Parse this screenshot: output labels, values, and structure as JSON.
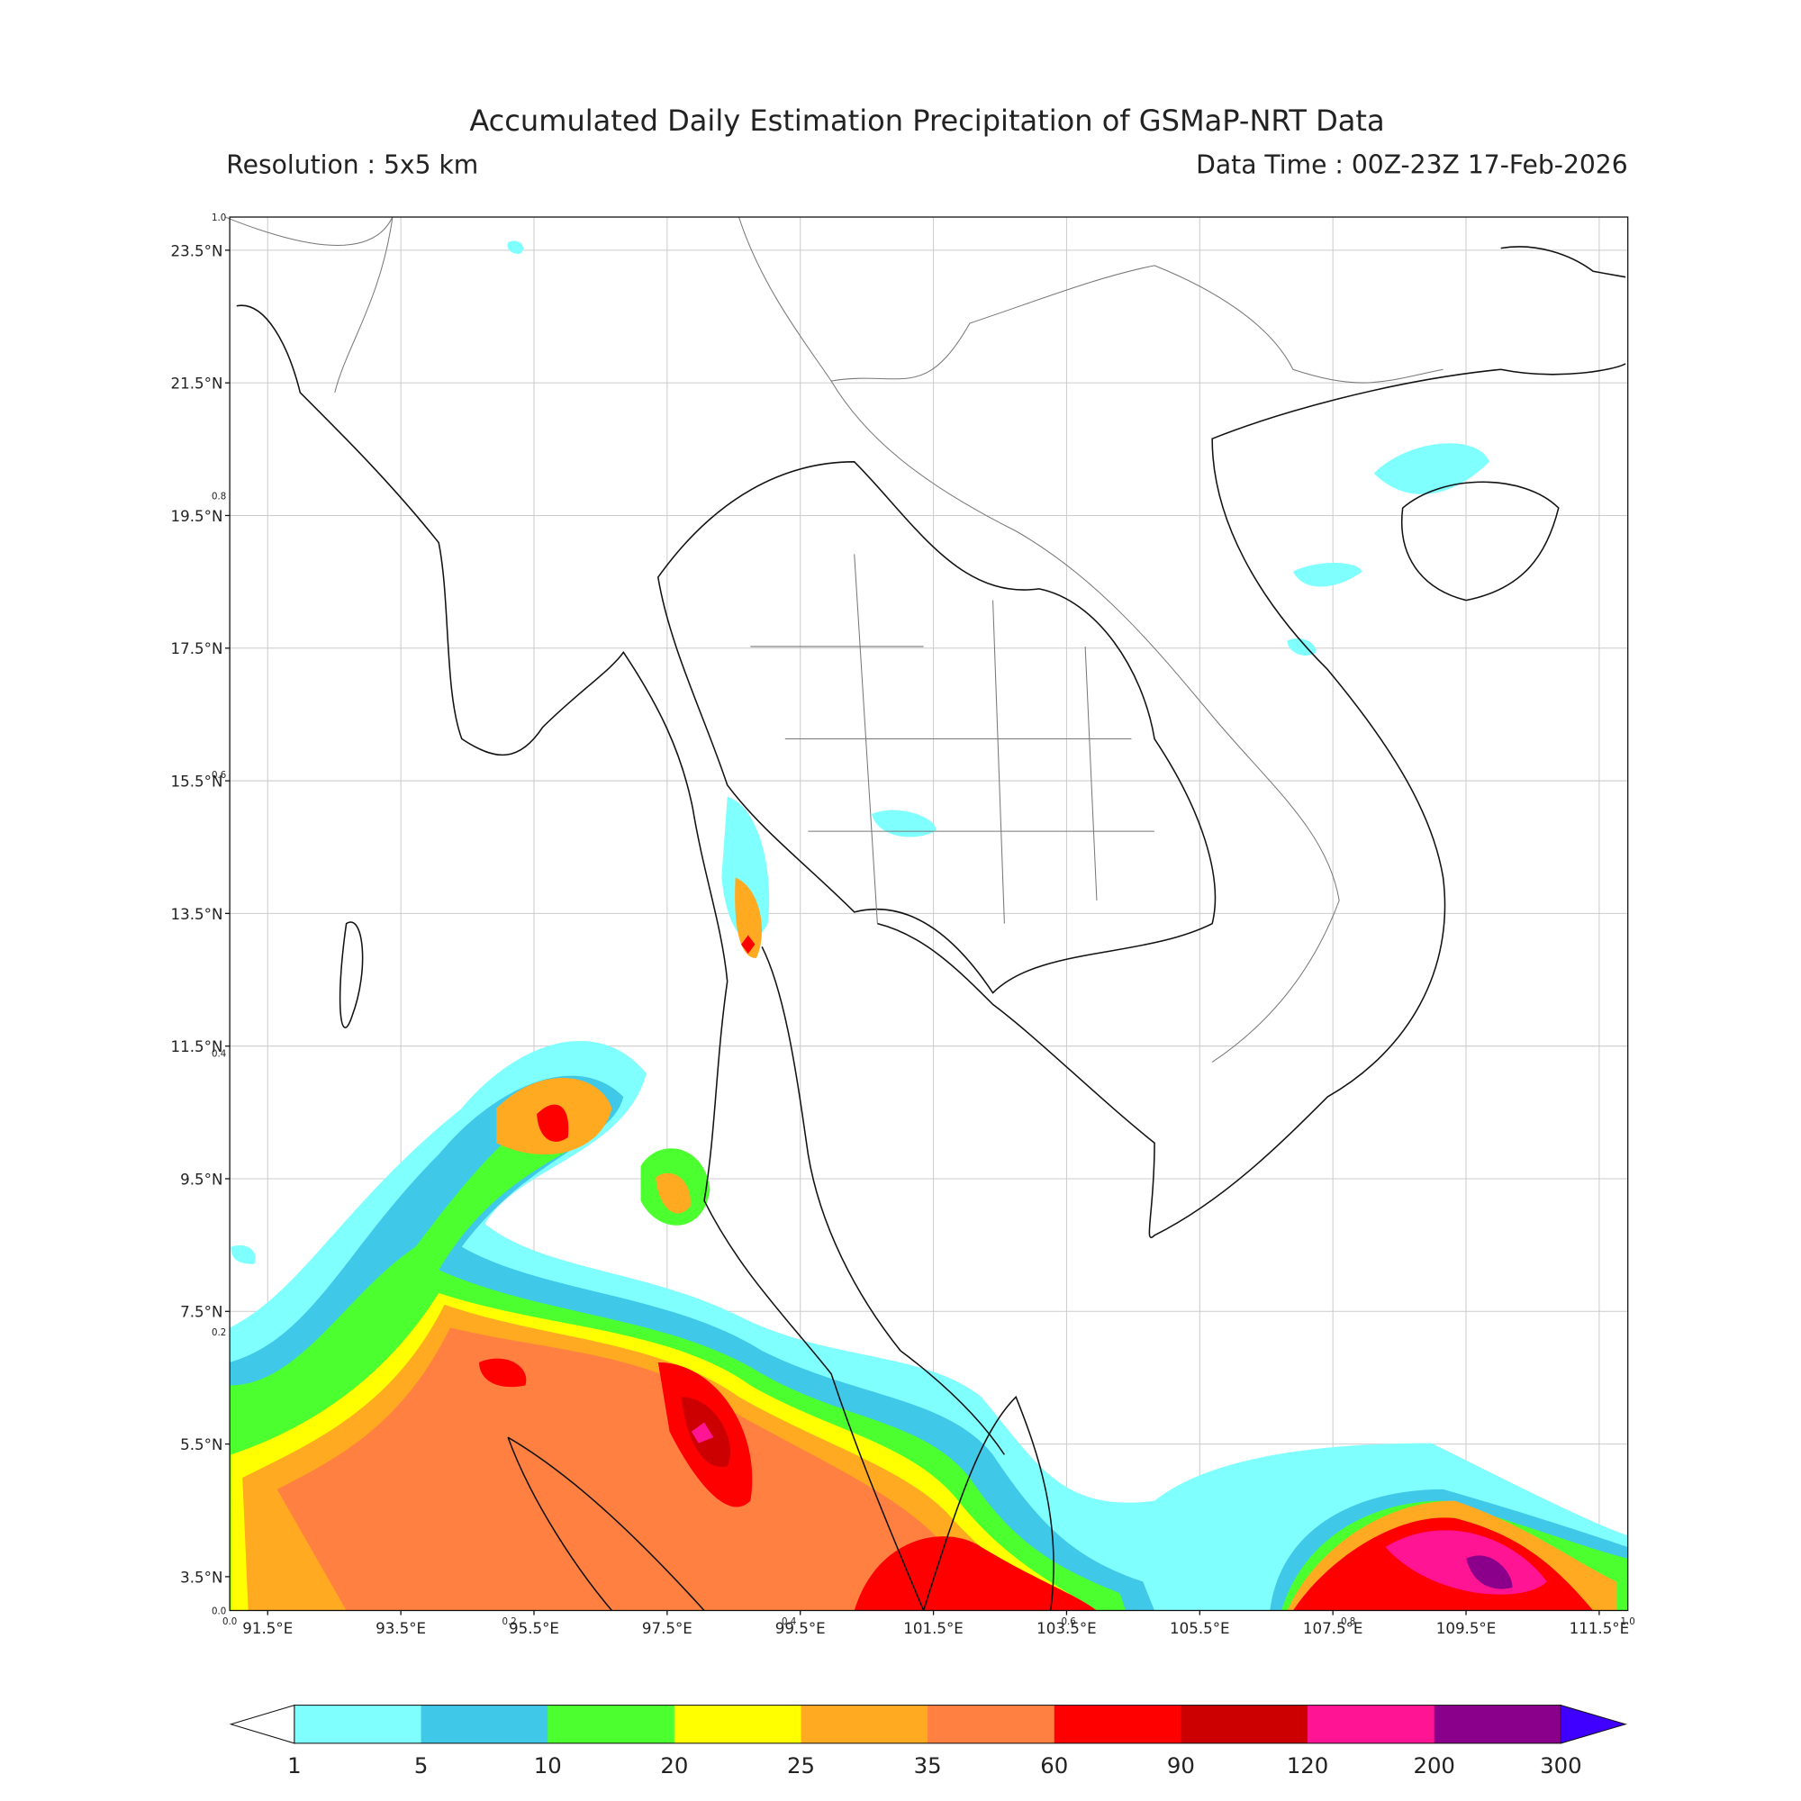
{
  "title": "Accumulated Daily Estimation Precipitation of GSMaP-NRT Data",
  "resolution": "Resolution : 5x5 km",
  "data_time": "Data Time : 00Z-23Z 17-Feb-2026",
  "map": {
    "lonlim": [
      90.93,
      111.93
    ],
    "latlim": [
      2.99,
      24.0
    ],
    "lon_ticks": [
      {
        "value": 91.5,
        "label": "91.5°E"
      },
      {
        "value": 93.5,
        "label": "93.5°E"
      },
      {
        "value": 95.5,
        "label": "95.5°E"
      },
      {
        "value": 97.5,
        "label": "97.5°E"
      },
      {
        "value": 99.5,
        "label": "99.5°E"
      },
      {
        "value": 101.5,
        "label": "101.5°E"
      },
      {
        "value": 103.5,
        "label": "103.5°E"
      },
      {
        "value": 105.5,
        "label": "105.5°E"
      },
      {
        "value": 107.5,
        "label": "107.5°E"
      },
      {
        "value": 109.5,
        "label": "109.5°E"
      },
      {
        "value": 111.5,
        "label": "111.5°E"
      }
    ],
    "lat_ticks": [
      {
        "value": 3.5,
        "label": "3.5°N"
      },
      {
        "value": 5.5,
        "label": "5.5°N"
      },
      {
        "value": 7.5,
        "label": "7.5°N"
      },
      {
        "value": 9.5,
        "label": "9.5°N"
      },
      {
        "value": 11.5,
        "label": "11.5°N"
      },
      {
        "value": 13.5,
        "label": "13.5°N"
      },
      {
        "value": 15.5,
        "label": "15.5°N"
      },
      {
        "value": 17.5,
        "label": "17.5°N"
      },
      {
        "value": 19.5,
        "label": "19.5°N"
      },
      {
        "value": 21.5,
        "label": "21.5°N"
      },
      {
        "value": 23.5,
        "label": "23.5°N"
      }
    ],
    "frame_ticks": [
      {
        "value": 0,
        "label": "0.0"
      },
      {
        "value": 0.2,
        "label": "0.2"
      },
      {
        "value": 0.4,
        "label": "0.4"
      },
      {
        "value": 0.6,
        "label": "0.6"
      },
      {
        "value": 0.8,
        "label": "0.8"
      },
      {
        "value": 1,
        "label": "1.0"
      }
    ]
  },
  "colorbar": {
    "levels": [
      1,
      5,
      10,
      20,
      25,
      35,
      60,
      90,
      120,
      200,
      300
    ],
    "colors": [
      "#80ffff",
      "#40c8e8",
      "#4cff2e",
      "#ffff00",
      "#ffaa20",
      "#ff8040",
      "#ff0000",
      "#cc0000",
      "#ff1493",
      "#8b008b"
    ],
    "under_color": "#ffffff",
    "over_color": "#3f00ff"
  }
}
